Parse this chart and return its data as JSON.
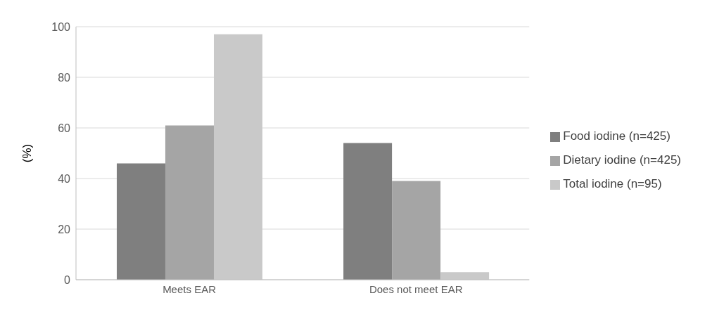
{
  "chart_data": {
    "type": "bar",
    "ylabel": "(%)",
    "categories": [
      "Meets EAR",
      "Does not meet EAR"
    ],
    "series": [
      {
        "name": "Food iodine (n=425)",
        "color": "#7f7f7f",
        "values": [
          46,
          54
        ]
      },
      {
        "name": "Dietary iodine (n=425)",
        "color": "#a5a5a5",
        "values": [
          61,
          39
        ]
      },
      {
        "name": "Total iodine (n=95)",
        "color": "#c9c9c9",
        "values": [
          97,
          3
        ]
      }
    ],
    "ylim": [
      0,
      100
    ],
    "yticks": [
      0,
      20,
      40,
      60,
      80,
      100
    ],
    "grid": "y",
    "legend": "right"
  }
}
